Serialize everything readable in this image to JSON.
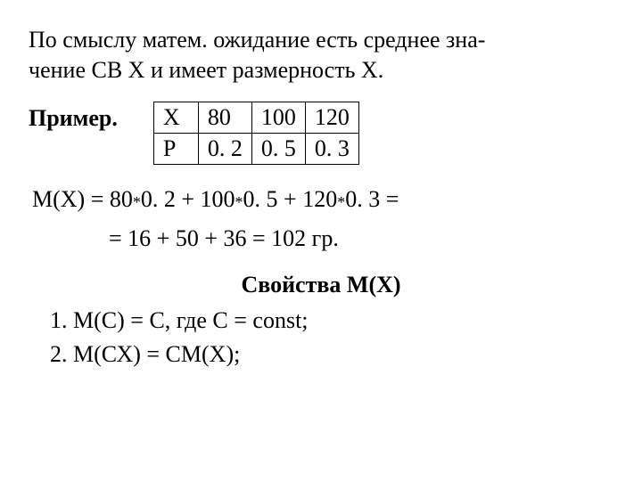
{
  "intro": {
    "line1": "По смыслу матем. ожидание есть среднее зна-",
    "line2": "чение СВ Х и имеет размерность Х."
  },
  "example": {
    "label": "Пример.",
    "table": {
      "row1_label": "X",
      "row1_vals": [
        "80",
        "100",
        "120"
      ],
      "row2_label": "P",
      "row2_vals": [
        "0. 2",
        "0. 5",
        "0. 3"
      ]
    }
  },
  "calc": {
    "prefix": "М(Х) = 80",
    "v1": "0. 2 + 100",
    "v2": "0. 5 + 120",
    "v3": "0. 3 =",
    "line2": "= 16 + 50 + 36 = 102 гр."
  },
  "properties": {
    "title": "Свойства М(Х)",
    "p1": "1. М(С) = С, где С = const;",
    "p2": "2. М(СХ) = СМ(Х);"
  },
  "mult_symbol": "*"
}
